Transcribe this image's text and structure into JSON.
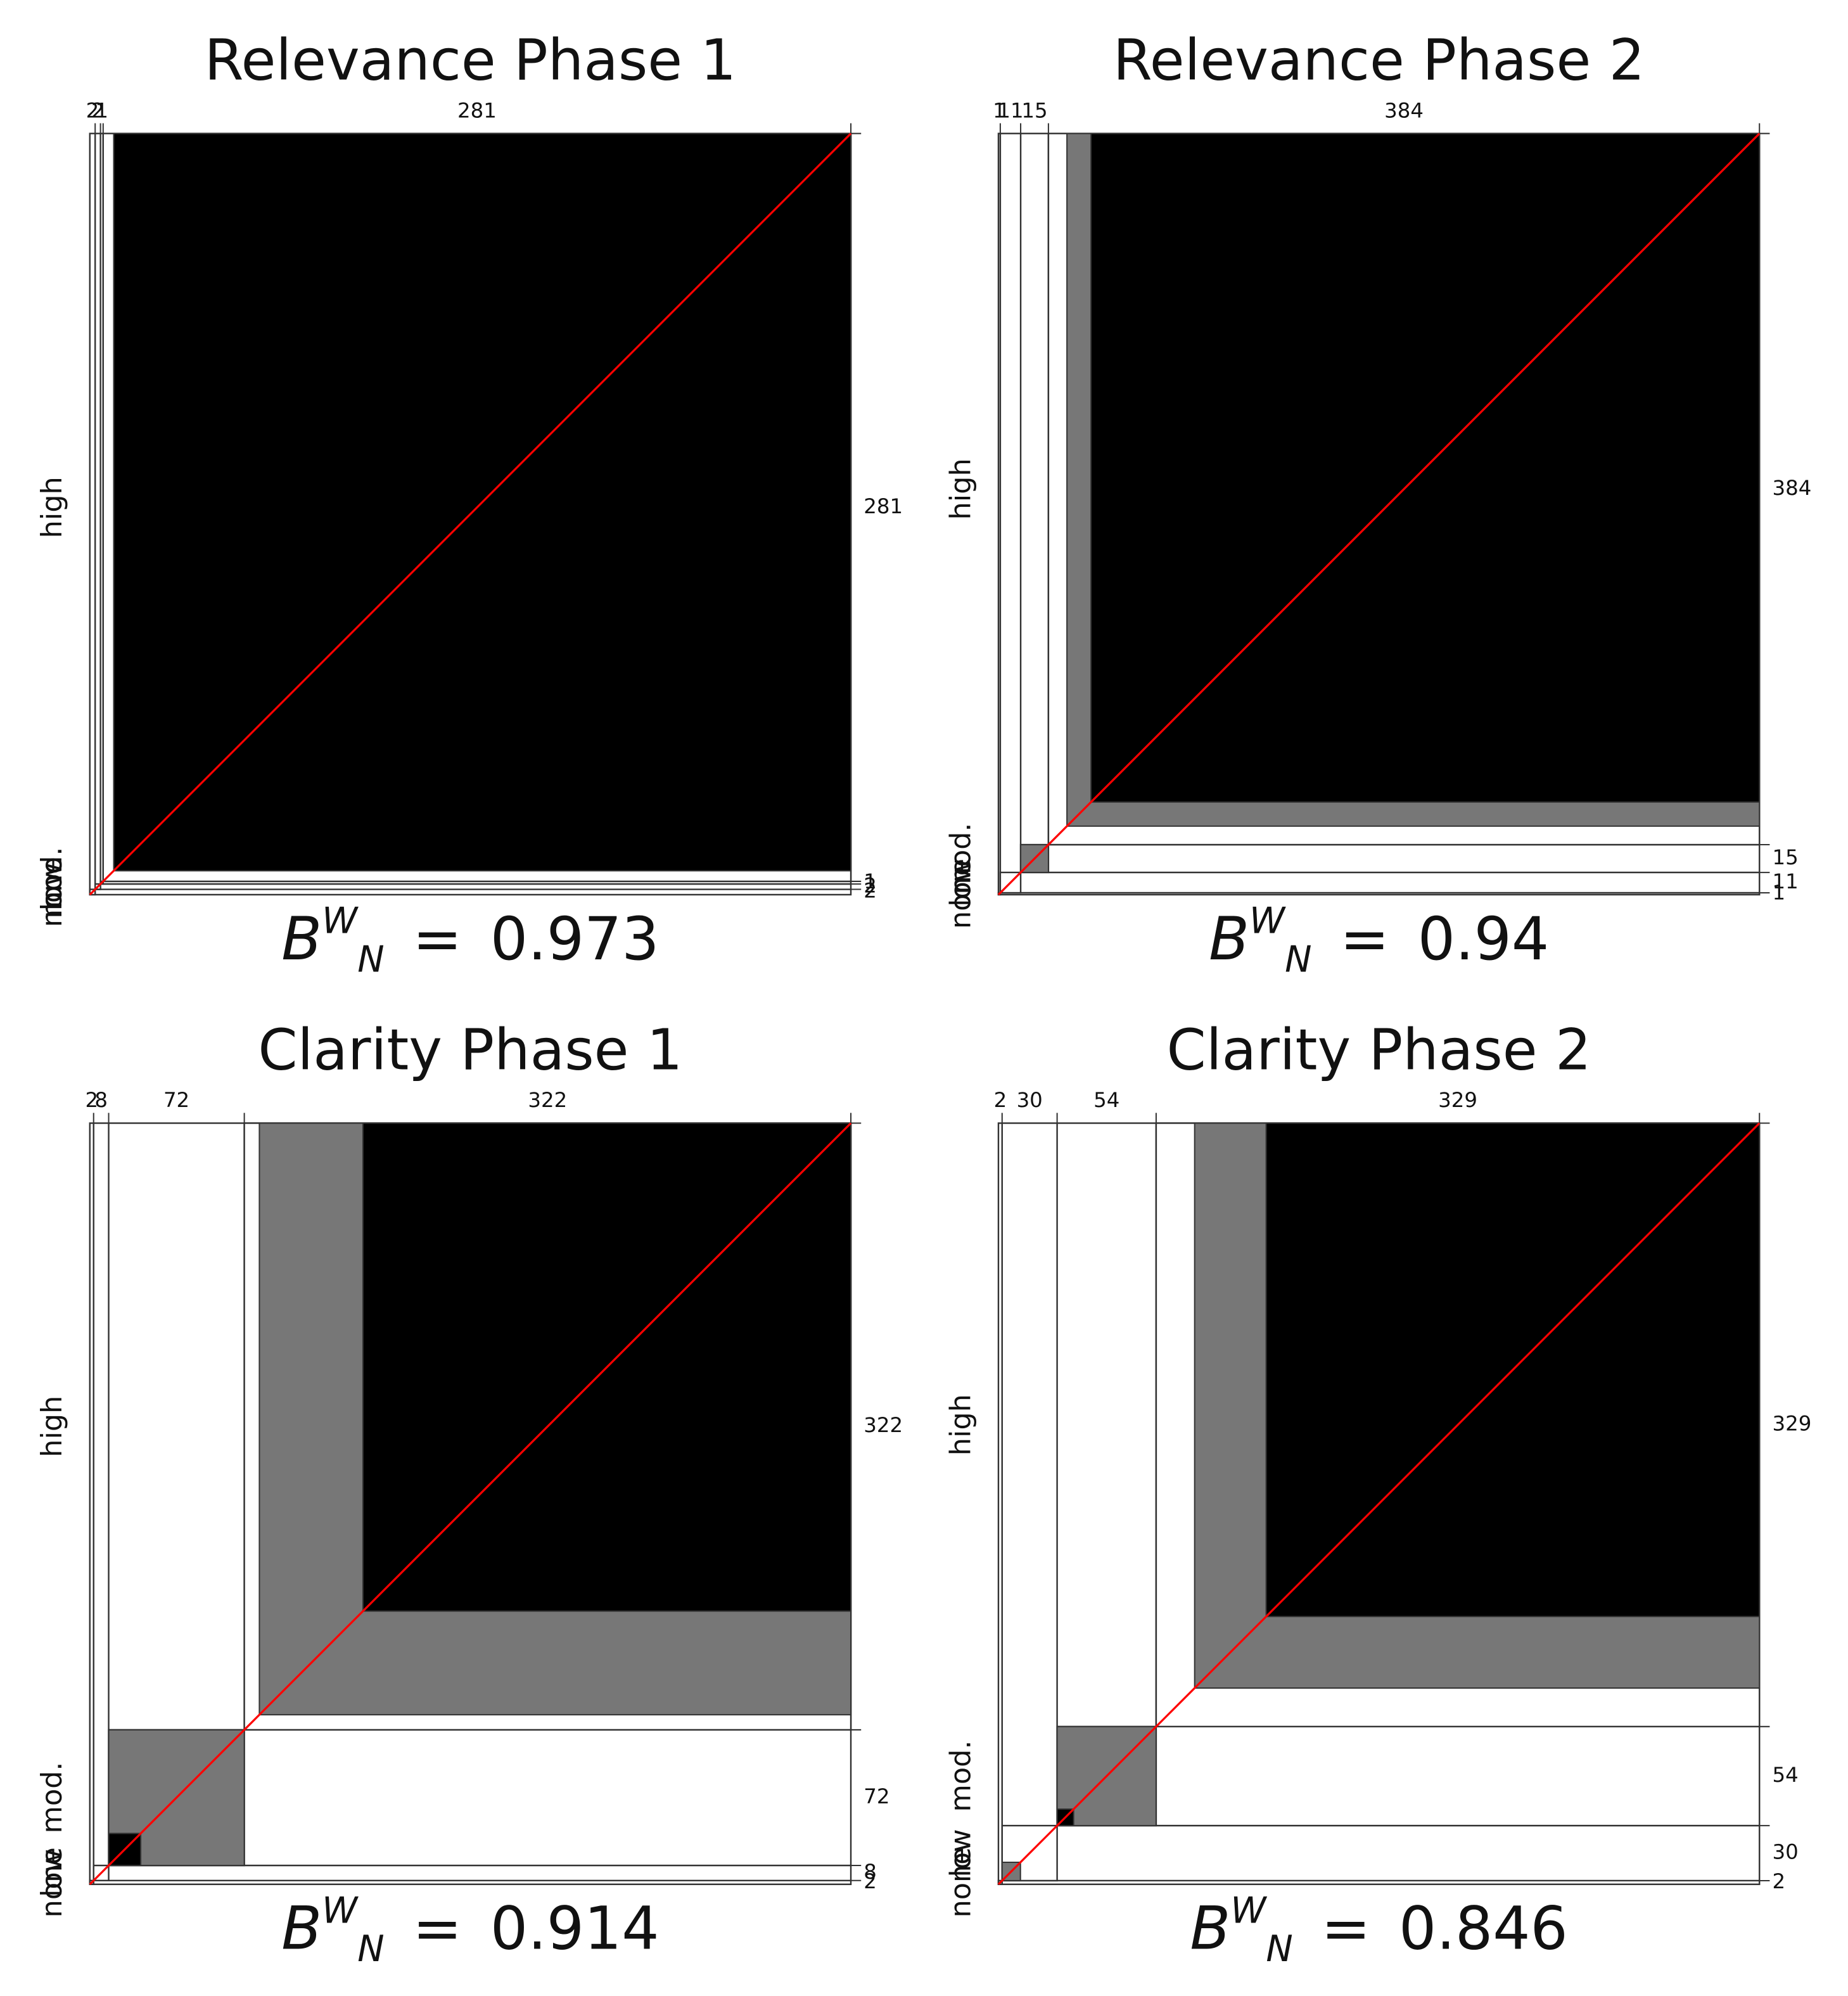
{
  "chart_data": [
    {
      "type": "agreement",
      "title": "Relevance Phase 1",
      "categories": [
        "none",
        "low",
        "mod.",
        "high"
      ],
      "col_totals": [
        2,
        2,
        1,
        281
      ],
      "row_totals": [
        2,
        2,
        1,
        281
      ],
      "agreement": [
        0,
        0,
        0,
        277
      ],
      "partial": [
        0,
        0,
        0,
        277
      ],
      "statistic": {
        "symbol": "B",
        "superscript": "W",
        "subscript": "N",
        "operator": "=",
        "value": 0.973
      },
      "agreement_color": "#000000",
      "partial_color": "#777777",
      "diagonal_color": "#ff0000"
    },
    {
      "type": "agreement",
      "title": "Relevance Phase 2",
      "categories": [
        "none",
        "low",
        "mod.",
        "high"
      ],
      "col_totals": [
        1,
        11,
        15,
        384
      ],
      "row_totals": [
        1,
        11,
        15,
        384
      ],
      "agreement": [
        0,
        1,
        0,
        361
      ],
      "partial": [
        0,
        1,
        15,
        374
      ],
      "statistic": {
        "symbol": "B",
        "superscript": "W",
        "subscript": "N",
        "operator": "=",
        "value": 0.94
      },
      "agreement_color": "#000000",
      "partial_color": "#777777",
      "diagonal_color": "#ff0000"
    },
    {
      "type": "agreement",
      "title": "Clarity Phase 1",
      "categories": [
        "none",
        "low",
        "mod.",
        "high"
      ],
      "col_totals": [
        2,
        8,
        72,
        322
      ],
      "row_totals": [
        2,
        8,
        72,
        322
      ],
      "agreement": [
        0,
        0,
        17,
        259
      ],
      "partial": [
        0,
        0,
        72,
        314
      ],
      "statistic": {
        "symbol": "B",
        "superscript": "W",
        "subscript": "N",
        "operator": "=",
        "value": 0.914
      },
      "agreement_color": "#000000",
      "partial_color": "#777777",
      "diagonal_color": "#ff0000"
    },
    {
      "type": "agreement",
      "title": "Clarity Phase 2",
      "categories": [
        "none",
        "low",
        "mod.",
        "high"
      ],
      "col_totals": [
        2,
        30,
        54,
        329
      ],
      "row_totals": [
        2,
        30,
        54,
        329
      ],
      "agreement": [
        0,
        0,
        9,
        269
      ],
      "partial": [
        0,
        10,
        54,
        308
      ],
      "statistic": {
        "symbol": "B",
        "superscript": "W",
        "subscript": "N",
        "operator": "=",
        "value": 0.846
      },
      "agreement_color": "#000000",
      "partial_color": "#777777",
      "diagonal_color": "#ff0000"
    }
  ]
}
